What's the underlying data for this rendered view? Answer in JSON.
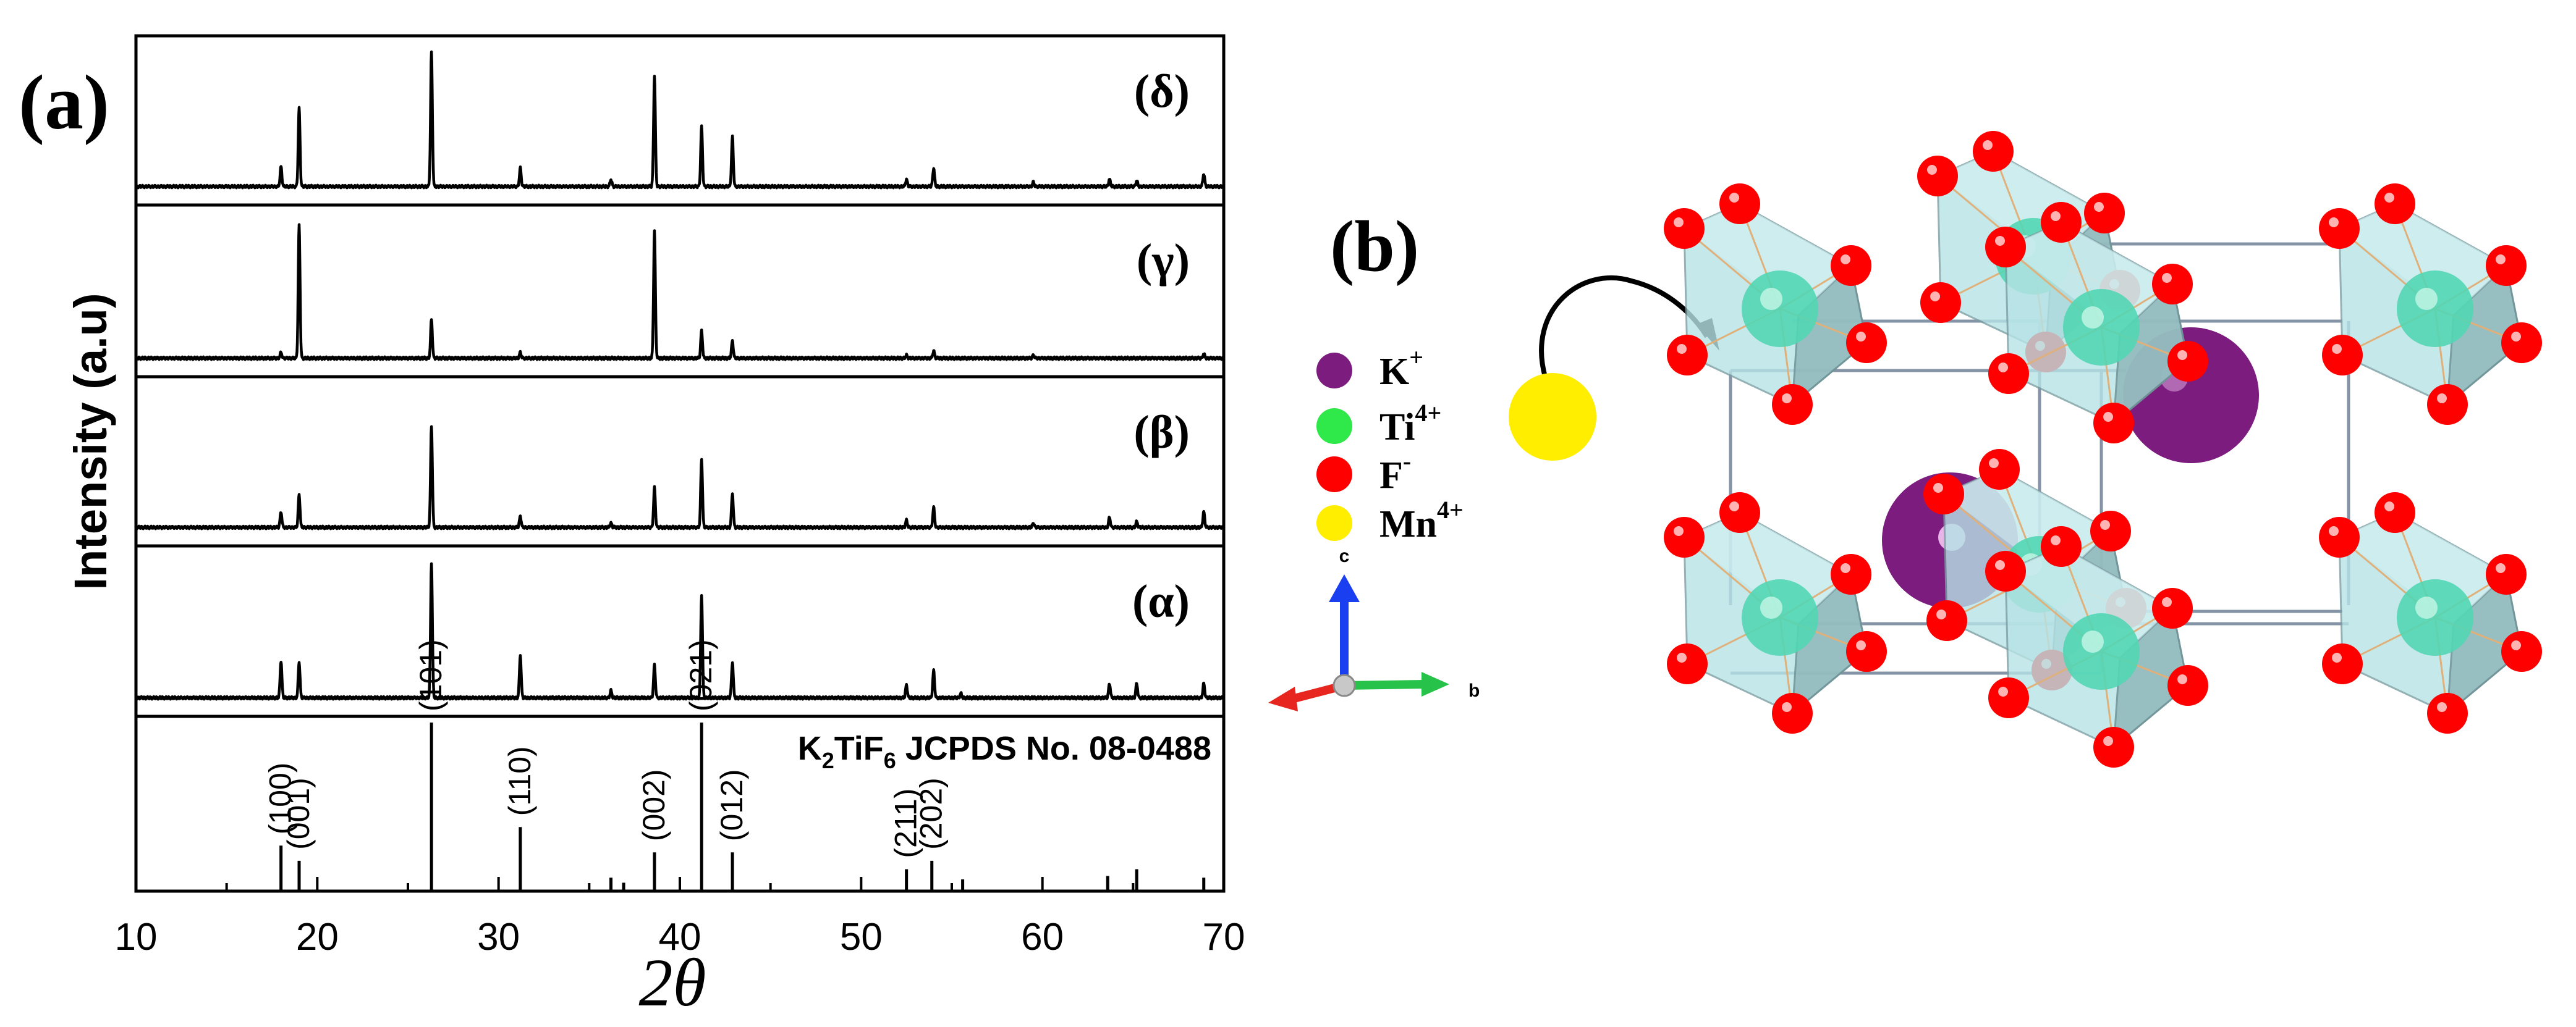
{
  "panel_a_label": "(a)",
  "panel_b_label": "(b)",
  "colors": {
    "trace": "#000000",
    "potassium": "#7b1c7e",
    "titanium": "#2fe84a",
    "fluorine": "#ff0000",
    "manganese": "#ffee00",
    "ti_in_octahedron": "#52d6b4",
    "octahedron": "#b7e3e6",
    "axis_c": "#1a3ff0",
    "axis_a": "#e6261f",
    "axis_b": "#27c24a"
  },
  "chart_data": {
    "type": "line",
    "ylabel": "Intensity (a.u)",
    "xlabel": "2θ",
    "xlim": [
      10,
      70
    ],
    "x_ticks": [
      "10",
      "20",
      "30",
      "40",
      "50",
      "60",
      "70"
    ],
    "grid": false,
    "series": [
      {
        "name": "(δ)",
        "peaks": [
          [
            18.0,
            0.14
          ],
          [
            19.0,
            0.55
          ],
          [
            26.3,
            0.95
          ],
          [
            31.2,
            0.13
          ],
          [
            36.2,
            0.05
          ],
          [
            38.6,
            0.78
          ],
          [
            41.2,
            0.42
          ],
          [
            42.9,
            0.35
          ],
          [
            52.5,
            0.05
          ],
          [
            54.0,
            0.13
          ],
          [
            59.5,
            0.03
          ],
          [
            63.7,
            0.05
          ],
          [
            65.2,
            0.04
          ],
          [
            68.9,
            0.09
          ]
        ]
      },
      {
        "name": "(γ)",
        "peaks": [
          [
            18.0,
            0.04
          ],
          [
            19.0,
            0.92
          ],
          [
            26.3,
            0.27
          ],
          [
            31.2,
            0.04
          ],
          [
            38.6,
            0.88
          ],
          [
            41.2,
            0.19
          ],
          [
            42.9,
            0.12
          ],
          [
            52.5,
            0.02
          ],
          [
            54.0,
            0.05
          ],
          [
            59.5,
            0.02
          ],
          [
            68.9,
            0.03
          ]
        ]
      },
      {
        "name": "(β)",
        "peaks": [
          [
            18.0,
            0.11
          ],
          [
            19.0,
            0.23
          ],
          [
            26.3,
            0.72
          ],
          [
            31.2,
            0.08
          ],
          [
            36.2,
            0.03
          ],
          [
            38.6,
            0.28
          ],
          [
            41.2,
            0.48
          ],
          [
            42.9,
            0.24
          ],
          [
            52.5,
            0.05
          ],
          [
            54.0,
            0.14
          ],
          [
            59.5,
            0.03
          ],
          [
            63.7,
            0.07
          ],
          [
            65.2,
            0.04
          ],
          [
            68.9,
            0.11
          ]
        ]
      },
      {
        "name": "(α)",
        "peaks": [
          [
            18.0,
            0.26
          ],
          [
            19.0,
            0.25
          ],
          [
            26.3,
            0.95
          ],
          [
            31.2,
            0.3
          ],
          [
            36.2,
            0.05
          ],
          [
            38.6,
            0.23
          ],
          [
            41.2,
            0.72
          ],
          [
            42.9,
            0.25
          ],
          [
            52.5,
            0.09
          ],
          [
            54.0,
            0.19
          ],
          [
            55.5,
            0.03
          ],
          [
            63.7,
            0.1
          ],
          [
            65.2,
            0.1
          ],
          [
            68.9,
            0.1
          ]
        ]
      }
    ],
    "reference": {
      "label": "K2TiF6 JCPDS No. 08-0488",
      "lines": [
        {
          "x": 18.0,
          "h": 0.27,
          "hkl": "(100)"
        },
        {
          "x": 19.0,
          "h": 0.18,
          "hkl": "(001)"
        },
        {
          "x": 26.3,
          "h": 1.0,
          "hkl": "(101)"
        },
        {
          "x": 31.2,
          "h": 0.38,
          "hkl": "(110)"
        },
        {
          "x": 36.2,
          "h": 0.08,
          "hkl": ""
        },
        {
          "x": 36.9,
          "h": 0.05,
          "hkl": ""
        },
        {
          "x": 38.6,
          "h": 0.23,
          "hkl": "(002)"
        },
        {
          "x": 41.2,
          "h": 1.0,
          "hkl": "(021)"
        },
        {
          "x": 42.9,
          "h": 0.23,
          "hkl": "(012)"
        },
        {
          "x": 52.5,
          "h": 0.13,
          "hkl": "(211)"
        },
        {
          "x": 53.9,
          "h": 0.18,
          "hkl": "(202)"
        },
        {
          "x": 55.6,
          "h": 0.07,
          "hkl": ""
        },
        {
          "x": 63.6,
          "h": 0.09,
          "hkl": ""
        },
        {
          "x": 65.2,
          "h": 0.13,
          "hkl": ""
        },
        {
          "x": 68.9,
          "h": 0.08,
          "hkl": ""
        }
      ]
    }
  },
  "structure": {
    "legend": [
      {
        "ion": "K",
        "charge": "+",
        "color_key": "potassium"
      },
      {
        "ion": "Ti",
        "charge": "4+",
        "color_key": "titanium"
      },
      {
        "ion": "F",
        "charge": "-",
        "color_key": "fluorine"
      },
      {
        "ion": "Mn",
        "charge": "4+",
        "color_key": "manganese"
      }
    ],
    "axes": {
      "c": "c",
      "b": "b"
    }
  }
}
